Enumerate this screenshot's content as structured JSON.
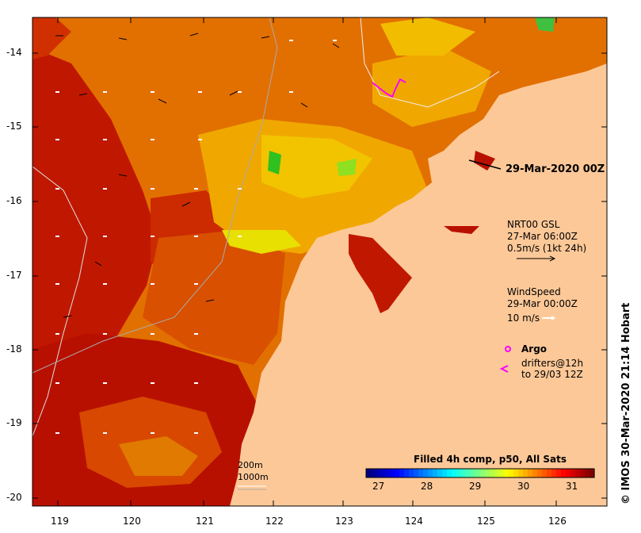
{
  "map": {
    "lat_labels": [
      "-14",
      "-15",
      "-16",
      "-17",
      "-18",
      "-19",
      "-20"
    ],
    "lon_labels": [
      "119",
      "120",
      "121",
      "122",
      "123",
      "124",
      "125",
      "126"
    ],
    "date_stamp": "29-Mar-2020 00Z",
    "credit": "© IMOS 30-Mar-2020 21:14 Hobart"
  },
  "legend": {
    "currents_title": "NRT00 GSL",
    "currents_time": "27-Mar 06:00Z",
    "currents_scale": "0.5m/s (1kt 24h)",
    "wind_title": "WindSpeed",
    "wind_time": "29-Mar 00:00Z",
    "wind_scale": "10 m/s",
    "argo_label": "Argo",
    "drifters_line1": "drifters@12h",
    "drifters_line2": "to 29/03 12Z",
    "bathy_200": "200m",
    "bathy_1000": "1000m"
  },
  "colorbar": {
    "title": "Filled 4h comp, p50, All Sats",
    "ticks": [
      "27",
      "28",
      "29",
      "30",
      "31"
    ],
    "range": [
      26.5,
      31.5
    ],
    "colors": [
      "#00007f",
      "#0000ff",
      "#007fff",
      "#00ffff",
      "#7fff7f",
      "#ffff00",
      "#ff7f00",
      "#ff0000",
      "#7f0000"
    ]
  },
  "colors": {
    "land": "#fdc898",
    "sea_hot": "#c81400",
    "sea_warm": "#e66a00",
    "sea_cool": "#f0b400",
    "argo": "#ff00ff"
  }
}
